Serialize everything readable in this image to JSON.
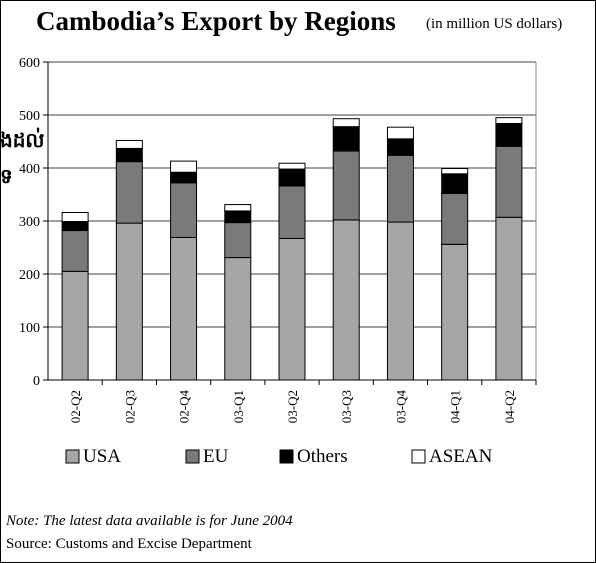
{
  "title": "Cambodia’s Export by Regions",
  "subtitle": "(in million US dollars)",
  "note": "Note: The latest data available is for June 2004",
  "source": "Source: Customs and Excise Department",
  "side_fragments": [
    "ងដល់",
    "ទ"
  ],
  "colors": {
    "USA": "#a6a6a6",
    "EU": "#7a7a7a",
    "Others": "#000000",
    "ASEAN": "#ffffff"
  },
  "chart_data": {
    "type": "bar",
    "stacked": true,
    "title": "Cambodia’s Export by Regions",
    "categories": [
      "02-Q2",
      "02-Q3",
      "02-Q4",
      "03-Q1",
      "03-Q2",
      "03-Q3",
      "03-Q4",
      "04-Q1",
      "04-Q2"
    ],
    "series": [
      {
        "name": "USA",
        "values": [
          205,
          296,
          269,
          231,
          267,
          302,
          298,
          256,
          307
        ]
      },
      {
        "name": "EU",
        "values": [
          77,
          116,
          103,
          66,
          99,
          130,
          126,
          96,
          134
        ]
      },
      {
        "name": "Others",
        "values": [
          17,
          25,
          20,
          22,
          32,
          46,
          31,
          37,
          43
        ]
      },
      {
        "name": "ASEAN",
        "values": [
          17,
          15,
          21,
          12,
          11,
          15,
          22,
          10,
          11
        ]
      }
    ],
    "ylim": [
      0,
      600
    ],
    "yticks": [
      0,
      100,
      200,
      300,
      400,
      500,
      600
    ],
    "grid": true,
    "legend_position": "bottom"
  }
}
